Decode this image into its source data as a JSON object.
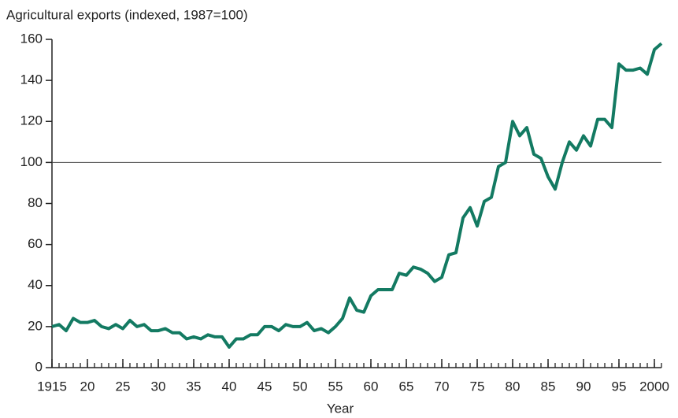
{
  "chart_data": {
    "type": "line",
    "title": "Agricultural exports (indexed, 1987=100)",
    "x_label": "Year",
    "x": [
      1915,
      1916,
      1917,
      1918,
      1919,
      1920,
      1921,
      1922,
      1923,
      1924,
      1925,
      1926,
      1927,
      1928,
      1929,
      1930,
      1931,
      1932,
      1933,
      1934,
      1935,
      1936,
      1937,
      1938,
      1939,
      1940,
      1941,
      1942,
      1943,
      1944,
      1945,
      1946,
      1947,
      1948,
      1949,
      1950,
      1951,
      1952,
      1953,
      1954,
      1955,
      1956,
      1957,
      1958,
      1959,
      1960,
      1961,
      1962,
      1963,
      1964,
      1965,
      1966,
      1967,
      1968,
      1969,
      1970,
      1971,
      1972,
      1973,
      1974,
      1975,
      1976,
      1977,
      1978,
      1979,
      1980,
      1981,
      1982,
      1983,
      1984,
      1985,
      1986,
      1987,
      1988,
      1989,
      1990,
      1991,
      1992,
      1993,
      1994,
      1995,
      1996,
      1997,
      1998,
      1999,
      2000,
      2001
    ],
    "series": [
      {
        "name": "Agricultural exports",
        "color": "#137a62",
        "values": [
          20,
          21,
          18,
          24,
          22,
          22,
          23,
          20,
          19,
          21,
          19,
          23,
          20,
          21,
          18,
          18,
          19,
          17,
          17,
          14,
          15,
          14,
          16,
          15,
          15,
          10,
          14,
          14,
          16,
          16,
          20,
          20,
          18,
          21,
          20,
          20,
          22,
          18,
          19,
          17,
          20,
          24,
          34,
          28,
          27,
          35,
          38,
          38,
          38,
          46,
          45,
          49,
          48,
          46,
          42,
          44,
          55,
          56,
          73,
          78,
          69,
          81,
          83,
          98,
          100,
          120,
          113,
          117,
          104,
          102,
          93,
          87,
          100,
          110,
          106,
          113,
          108,
          121,
          121,
          117,
          148,
          145,
          145,
          146,
          143,
          155,
          158
        ]
      }
    ],
    "xlim": [
      1915,
      2001
    ],
    "xticks": [
      1915,
      {
        "value": 1920,
        "label": "20"
      },
      {
        "value": 1925,
        "label": "25"
      },
      {
        "value": 1930,
        "label": "30"
      },
      {
        "value": 1935,
        "label": "35"
      },
      {
        "value": 1940,
        "label": "40"
      },
      {
        "value": 1945,
        "label": "45"
      },
      {
        "value": 1950,
        "label": "50"
      },
      {
        "value": 1955,
        "label": "55"
      },
      {
        "value": 1960,
        "label": "60"
      },
      {
        "value": 1965,
        "label": "65"
      },
      {
        "value": 1970,
        "label": "70"
      },
      {
        "value": 1975,
        "label": "75"
      },
      {
        "value": 1980,
        "label": "80"
      },
      {
        "value": 1985,
        "label": "85"
      },
      {
        "value": 1990,
        "label": "90"
      },
      {
        "value": 1995,
        "label": "95"
      },
      2000
    ],
    "ylim": [
      0,
      160
    ],
    "yticks": [
      0,
      20,
      40,
      60,
      80,
      100,
      120,
      140,
      160
    ],
    "reference_line": 100,
    "grid": false
  }
}
